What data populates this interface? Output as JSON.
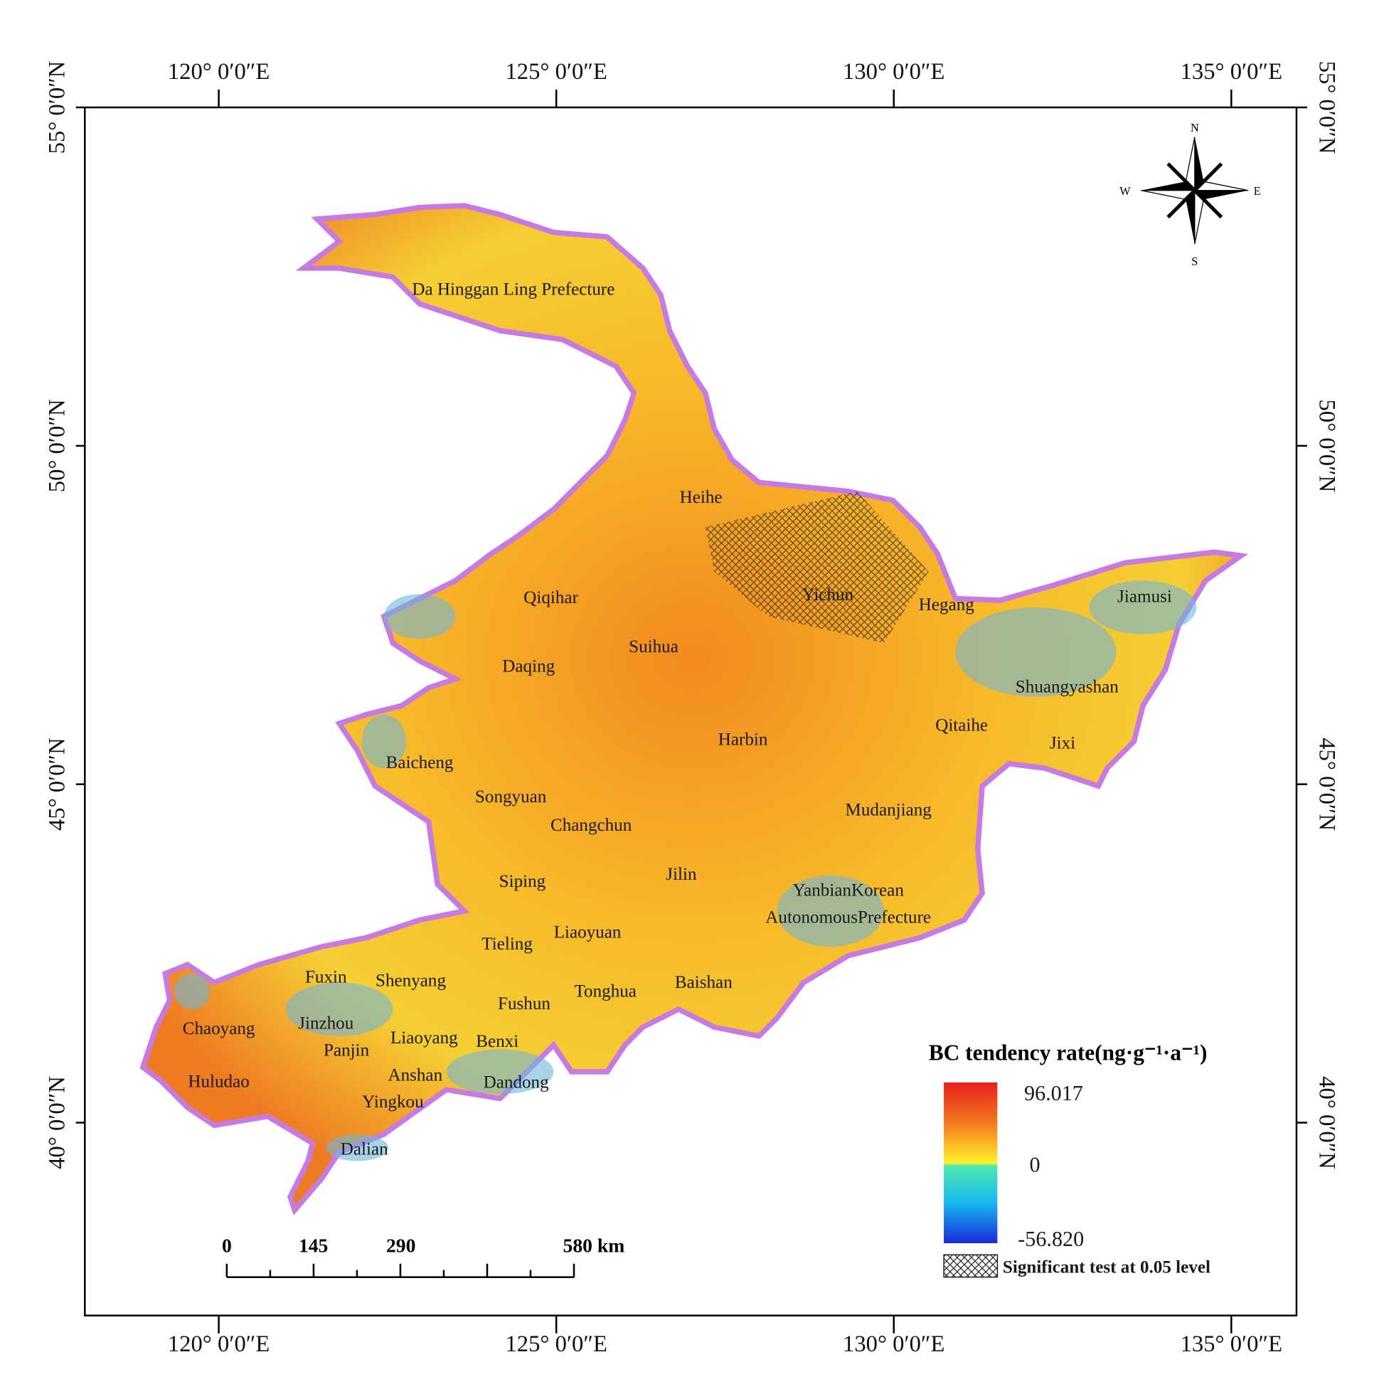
{
  "map": {
    "lon_ticks": [
      {
        "value": 120,
        "label": "120° 0′0″E"
      },
      {
        "value": 125,
        "label": "125° 0′0″E"
      },
      {
        "value": 130,
        "label": "130° 0′0″E"
      },
      {
        "value": 135,
        "label": "135° 0′0″E"
      }
    ],
    "lat_ticks": [
      {
        "value": 55,
        "label": "55° 0′0″N"
      },
      {
        "value": 50,
        "label": "50° 0′0″N"
      },
      {
        "value": 45,
        "label": "45° 0′0″N"
      },
      {
        "value": 40,
        "label": "40° 0′0″N"
      }
    ],
    "places": [
      "Da Hinggan Ling Prefecture",
      "Heihe",
      "Qiqihar",
      "Yichun",
      "Hegang",
      "Jiamusi",
      "Suihua",
      "Daqing",
      "Shuangyashan",
      "Qitaihe",
      "Harbin",
      "Jixi",
      "Baicheng",
      "Songyuan",
      "Changchun",
      "Mudanjiang",
      "Jilin",
      "Siping",
      "YanbianKorean",
      "AutonomousPrefecture",
      "Tieling",
      "Liaoyuan",
      "Fuxin",
      "Shenyang",
      "Baishan",
      "Tonghua",
      "Fushun",
      "Chaoyang",
      "Jinzhou",
      "Liaoyang",
      "Benxi",
      "Panjin",
      "Anshan",
      "Huludao",
      "Dandong",
      "Yingkou",
      "Dalian"
    ],
    "compass": [
      "N",
      "E",
      "S",
      "W"
    ],
    "scale_bar": [
      "0",
      "145",
      "290",
      "580 km"
    ]
  },
  "legend": {
    "title": "BC tendency rate(ng·g⁻¹·a⁻¹)",
    "max": "96.017",
    "mid": "0",
    "min": "-56.820",
    "hatch": "Significant test at 0.05 level"
  }
}
